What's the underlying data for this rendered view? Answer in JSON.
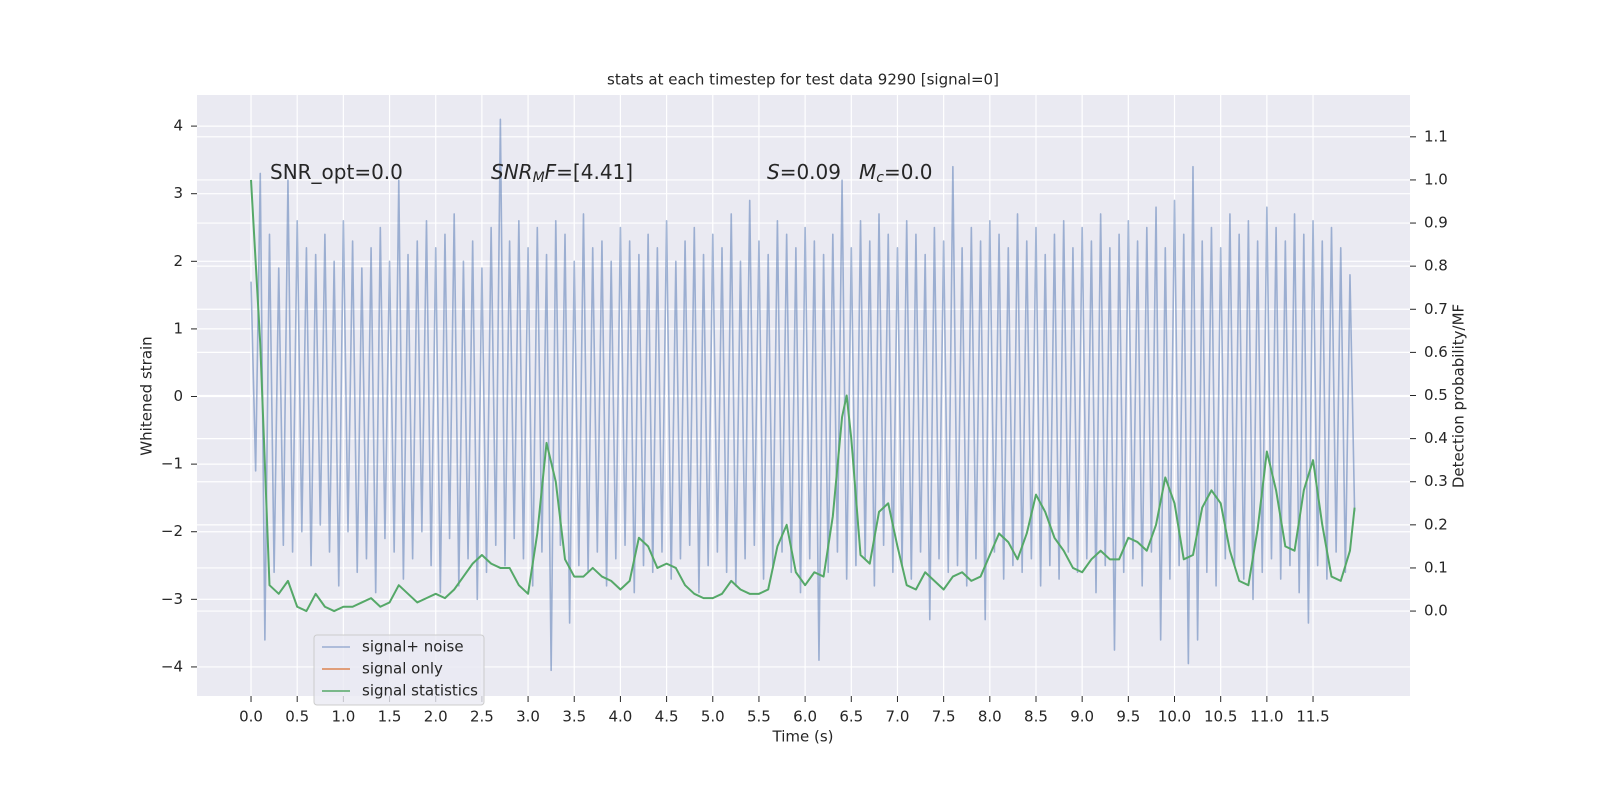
{
  "chart_data": {
    "type": "line",
    "title": "stats at each timestep for test data 9290 [signal=0]",
    "xlabel": "Time (s)",
    "ylabel": "Whitened strain",
    "y2label": "Detection probability/MF",
    "xlim": [
      -0.585,
      12.55
    ],
    "ylim": [
      -4.43,
      4.46
    ],
    "y2lim": [
      -0.197,
      1.197
    ],
    "xticks": [
      {
        "value": 0,
        "label": "0.0"
      },
      0.5,
      {
        "value": 1,
        "label": "1.0"
      },
      1.5,
      {
        "value": 2,
        "label": "2.0"
      },
      2.5,
      {
        "value": 3,
        "label": "3.0"
      },
      3.5,
      {
        "value": 4,
        "label": "4.0"
      },
      4.5,
      {
        "value": 5,
        "label": "5.0"
      },
      5.5,
      {
        "value": 6,
        "label": "6.0"
      },
      6.5,
      {
        "value": 7,
        "label": "7.0"
      },
      7.5,
      {
        "value": 8,
        "label": "8.0"
      },
      8.5,
      {
        "value": 9,
        "label": "9.0"
      },
      9.5,
      {
        "value": 10,
        "label": "10.0"
      },
      10.5,
      {
        "value": 11,
        "label": "11.0"
      },
      11.5
    ],
    "yticks": [
      {
        "value": -4,
        "label": "−4"
      },
      {
        "value": -3,
        "label": "−3"
      },
      {
        "value": -2,
        "label": "−2"
      },
      {
        "value": -1,
        "label": "−1"
      },
      0,
      1,
      2,
      3,
      4
    ],
    "y2ticks": [
      {
        "value": 0,
        "label": "0.0"
      },
      0.1,
      0.2,
      0.3,
      0.4,
      0.5,
      0.6,
      0.7,
      0.8,
      0.9,
      {
        "value": 1,
        "label": "1.0"
      },
      1.1
    ],
    "grid": true,
    "legend": "lower left",
    "annotations": [
      [
        {
          "text": "SNR_opt=0.0"
        }
      ],
      [
        {
          "text": "SNR",
          "style": "italic"
        },
        {
          "text": "M",
          "style": "italic-sub"
        },
        {
          "text": "F",
          "style": "italic"
        },
        {
          "text": "=[4.41]"
        }
      ],
      [
        {
          "text": "S",
          "style": "italic"
        },
        {
          "text": "=0.09"
        }
      ],
      [
        {
          "text": "M",
          "style": "italic"
        },
        {
          "text": "c",
          "style": "italic-sub"
        },
        {
          "text": "=0.0"
        }
      ]
    ],
    "series": [
      {
        "name": "signal+ noise",
        "color": "#4c72b0",
        "alpha": 0.5,
        "x": [
          0,
          0.05,
          0.1,
          0.15,
          0.2,
          0.25,
          0.3,
          0.35,
          0.4,
          0.45,
          0.5,
          0.55,
          0.6,
          0.65,
          0.7,
          0.75,
          0.8,
          0.85,
          0.9,
          0.95,
          1,
          1.05,
          1.1,
          1.15,
          1.2,
          1.25,
          1.3,
          1.35,
          1.4,
          1.45,
          1.5,
          1.55,
          1.6,
          1.65,
          1.7,
          1.75,
          1.8,
          1.85,
          1.9,
          1.95,
          2,
          2.05,
          2.1,
          2.15,
          2.2,
          2.25,
          2.3,
          2.35,
          2.4,
          2.45,
          2.5,
          2.55,
          2.6,
          2.65,
          2.7,
          2.75,
          2.8,
          2.85,
          2.9,
          2.95,
          3,
          3.05,
          3.1,
          3.15,
          3.2,
          3.25,
          3.3,
          3.35,
          3.4,
          3.45,
          3.5,
          3.55,
          3.6,
          3.65,
          3.7,
          3.75,
          3.8,
          3.85,
          3.9,
          3.95,
          4,
          4.05,
          4.1,
          4.15,
          4.2,
          4.25,
          4.3,
          4.35,
          4.4,
          4.45,
          4.5,
          4.55,
          4.6,
          4.65,
          4.7,
          4.75,
          4.8,
          4.85,
          4.9,
          4.95,
          5,
          5.05,
          5.1,
          5.15,
          5.2,
          5.25,
          5.3,
          5.35,
          5.4,
          5.45,
          5.5,
          5.55,
          5.6,
          5.65,
          5.7,
          5.75,
          5.8,
          5.85,
          5.9,
          5.95,
          6,
          6.05,
          6.1,
          6.15,
          6.2,
          6.25,
          6.3,
          6.35,
          6.4,
          6.45,
          6.5,
          6.55,
          6.6,
          6.65,
          6.7,
          6.75,
          6.8,
          6.85,
          6.9,
          6.95,
          7,
          7.05,
          7.1,
          7.15,
          7.2,
          7.25,
          7.3,
          7.35,
          7.4,
          7.45,
          7.5,
          7.55,
          7.6,
          7.65,
          7.7,
          7.75,
          7.8,
          7.85,
          7.9,
          7.95,
          8,
          8.05,
          8.1,
          8.15,
          8.2,
          8.25,
          8.3,
          8.35,
          8.4,
          8.45,
          8.5,
          8.55,
          8.6,
          8.65,
          8.7,
          8.75,
          8.8,
          8.85,
          8.9,
          8.95,
          9,
          9.05,
          9.1,
          9.15,
          9.2,
          9.25,
          9.3,
          9.35,
          9.4,
          9.45,
          9.5,
          9.55,
          9.6,
          9.65,
          9.7,
          9.75,
          9.8,
          9.85,
          9.9,
          9.95,
          10,
          10.05,
          10.1,
          10.15,
          10.2,
          10.25,
          10.3,
          10.35,
          10.4,
          10.45,
          10.5,
          10.55,
          10.6,
          10.65,
          10.7,
          10.75,
          10.8,
          10.85,
          10.9,
          10.95,
          11,
          11.05,
          11.1,
          11.15,
          11.2,
          11.25,
          11.3,
          11.35,
          11.4,
          11.45,
          11.5,
          11.55,
          11.6,
          11.65,
          11.7,
          11.75,
          11.8,
          11.85,
          11.9,
          11.95
        ],
        "values": [
          1.7,
          -1.1,
          3.3,
          -3.6,
          2.4,
          -2.6,
          1.9,
          -2.2,
          3.2,
          -2.3,
          2.6,
          -2.0,
          2.2,
          -2.5,
          2.1,
          -1.9,
          2.4,
          -2.3,
          2.0,
          -2.8,
          2.6,
          -2.0,
          2.3,
          -2.6,
          1.9,
          -2.4,
          2.2,
          -2.9,
          2.5,
          -2.1,
          2.0,
          -2.3,
          3.2,
          -2.7,
          2.1,
          -2.4,
          2.3,
          -2.0,
          2.6,
          -2.5,
          2.2,
          -2.9,
          2.4,
          -2.1,
          2.7,
          -2.8,
          2.0,
          -2.4,
          2.3,
          -3.0,
          1.9,
          -2.6,
          2.5,
          -2.2,
          4.1,
          -2.5,
          2.3,
          -2.1,
          2.6,
          -2.4,
          2.2,
          -2.8,
          2.5,
          -2.3,
          2.1,
          -4.05,
          2.6,
          -2.2,
          2.4,
          -3.35,
          2.0,
          -2.5,
          2.7,
          -2.6,
          2.2,
          -2.3,
          2.3,
          -2.8,
          2.0,
          -2.4,
          2.5,
          -2.2,
          2.3,
          -2.9,
          2.1,
          -2.5,
          2.4,
          -2.6,
          2.2,
          -2.3,
          2.6,
          -2.7,
          2.0,
          -2.4,
          2.3,
          -2.2,
          2.5,
          -2.9,
          2.1,
          -2.5,
          2.4,
          -2.3,
          2.2,
          -2.6,
          2.7,
          -2.8,
          2.0,
          -2.4,
          2.9,
          -2.2,
          2.3,
          -2.7,
          2.1,
          -2.5,
          2.6,
          -2.3,
          2.4,
          -2.6,
          2.2,
          -2.9,
          2.5,
          -2.4,
          2.3,
          -3.9,
          2.1,
          -2.6,
          2.4,
          -2.3,
          3.2,
          -2.7,
          2.2,
          -2.5,
          2.6,
          -2.4,
          2.3,
          -2.8,
          2.7,
          -2.2,
          2.4,
          -2.6,
          2.2,
          -2.5,
          2.6,
          -2.7,
          2.4,
          -2.3,
          2.1,
          -3.3,
          2.5,
          -2.4,
          2.3,
          -2.6,
          3.4,
          -2.5,
          2.2,
          -2.8,
          2.5,
          -2.4,
          2.3,
          -3.3,
          2.6,
          -2.3,
          2.4,
          -2.7,
          2.2,
          -2.5,
          2.7,
          -2.6,
          2.3,
          -2.4,
          2.5,
          -2.8,
          2.1,
          -2.5,
          2.4,
          -2.7,
          2.6,
          -2.3,
          2.2,
          -2.6,
          2.5,
          -2.4,
          2.3,
          -2.9,
          2.7,
          -2.5,
          2.2,
          -3.75,
          2.4,
          -2.6,
          2.6,
          -2.4,
          2.3,
          -2.8,
          2.5,
          -2.3,
          2.8,
          -3.6,
          2.2,
          -2.7,
          2.9,
          -2.5,
          2.4,
          -3.95,
          3.4,
          -3.6,
          2.3,
          -2.6,
          2.5,
          -2.8,
          2.2,
          -2.4,
          2.7,
          -2.5,
          2.4,
          -2.7,
          2.6,
          -3.0,
          2.3,
          -2.6,
          2.8,
          -2.4,
          2.5,
          -2.7,
          2.3,
          -2.5,
          2.7,
          -2.9,
          2.4,
          -3.35,
          2.6,
          -2.5,
          2.3,
          -2.7,
          2.5,
          -2.3,
          2.2,
          -2.6,
          1.8,
          -1.7
        ]
      },
      {
        "name": "signal only",
        "color": "#dd8452",
        "x": [],
        "values": []
      },
      {
        "name": "signal statistics",
        "color": "#55a868",
        "axis": "y2",
        "x": [
          0,
          0.1,
          0.2,
          0.3,
          0.4,
          0.5,
          0.6,
          0.7,
          0.8,
          0.9,
          1,
          1.1,
          1.2,
          1.3,
          1.4,
          1.5,
          1.6,
          1.7,
          1.8,
          1.9,
          2,
          2.1,
          2.2,
          2.3,
          2.4,
          2.5,
          2.6,
          2.7,
          2.8,
          2.9,
          3,
          3.1,
          3.2,
          3.3,
          3.4,
          3.5,
          3.6,
          3.7,
          3.8,
          3.9,
          4,
          4.1,
          4.2,
          4.3,
          4.4,
          4.5,
          4.6,
          4.7,
          4.8,
          4.9,
          5,
          5.1,
          5.2,
          5.3,
          5.4,
          5.5,
          5.6,
          5.7,
          5.8,
          5.9,
          6,
          6.1,
          6.2,
          6.3,
          6.4,
          6.45,
          6.5,
          6.6,
          6.7,
          6.8,
          6.9,
          7,
          7.1,
          7.2,
          7.3,
          7.4,
          7.5,
          7.6,
          7.7,
          7.8,
          7.9,
          8,
          8.1,
          8.2,
          8.3,
          8.4,
          8.5,
          8.6,
          8.7,
          8.8,
          8.9,
          9,
          9.1,
          9.2,
          9.3,
          9.4,
          9.5,
          9.6,
          9.7,
          9.8,
          9.9,
          10,
          10.1,
          10.2,
          10.3,
          10.4,
          10.5,
          10.6,
          10.7,
          10.8,
          10.9,
          11,
          11.1,
          11.2,
          11.3,
          11.4,
          11.5,
          11.6,
          11.7,
          11.8,
          11.9,
          11.95
        ],
        "values": [
          1.0,
          0.62,
          0.06,
          0.04,
          0.07,
          0.01,
          0.0,
          0.04,
          0.01,
          0.0,
          0.01,
          0.01,
          0.02,
          0.03,
          0.01,
          0.02,
          0.06,
          0.04,
          0.02,
          0.03,
          0.04,
          0.03,
          0.05,
          0.08,
          0.11,
          0.13,
          0.11,
          0.1,
          0.1,
          0.06,
          0.04,
          0.18,
          0.39,
          0.3,
          0.12,
          0.08,
          0.08,
          0.1,
          0.08,
          0.07,
          0.05,
          0.07,
          0.17,
          0.15,
          0.1,
          0.11,
          0.1,
          0.06,
          0.04,
          0.03,
          0.03,
          0.04,
          0.07,
          0.05,
          0.04,
          0.04,
          0.05,
          0.15,
          0.2,
          0.09,
          0.06,
          0.09,
          0.08,
          0.22,
          0.45,
          0.5,
          0.4,
          0.13,
          0.11,
          0.23,
          0.25,
          0.15,
          0.06,
          0.05,
          0.09,
          0.07,
          0.05,
          0.08,
          0.09,
          0.07,
          0.08,
          0.13,
          0.18,
          0.16,
          0.12,
          0.18,
          0.27,
          0.23,
          0.17,
          0.14,
          0.1,
          0.09,
          0.12,
          0.14,
          0.12,
          0.12,
          0.17,
          0.16,
          0.14,
          0.2,
          0.31,
          0.25,
          0.12,
          0.13,
          0.24,
          0.28,
          0.25,
          0.14,
          0.07,
          0.06,
          0.19,
          0.37,
          0.28,
          0.15,
          0.14,
          0.28,
          0.35,
          0.2,
          0.08,
          0.07,
          0.14,
          0.24
        ]
      }
    ]
  }
}
